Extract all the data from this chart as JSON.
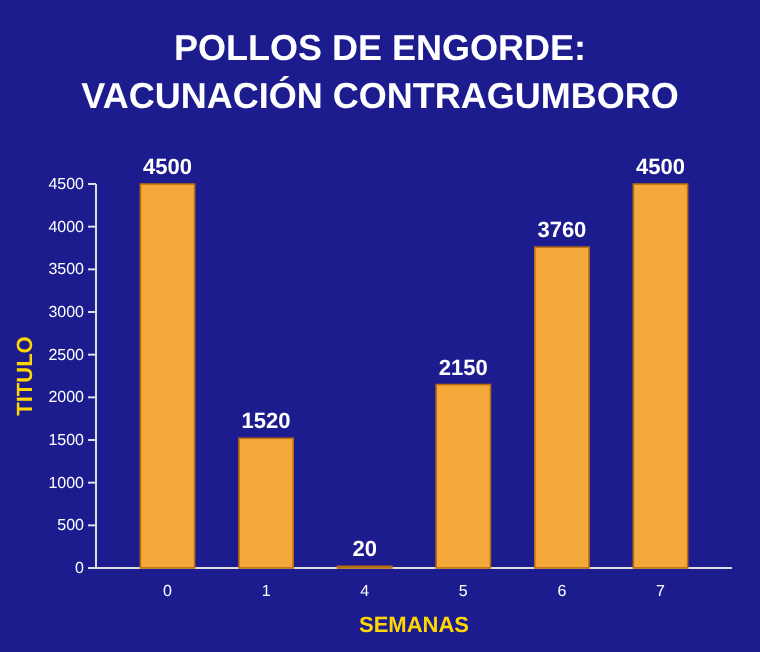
{
  "chart_data": {
    "type": "bar",
    "title": "POLLOS DE ENGORDE:\nVACUNACIÓN CONTRAGUMBORO",
    "xlabel": "SEMANAS",
    "ylabel": "TITULO",
    "categories": [
      "0",
      "1",
      "4",
      "5",
      "6",
      "7"
    ],
    "values": [
      4500,
      1520,
      20,
      2150,
      3760,
      4500
    ],
    "color": "#f6a93b",
    "ylim": [
      0,
      4500
    ],
    "yticks": [
      0,
      500,
      1000,
      1500,
      2000,
      2500,
      3000,
      3500,
      4000,
      4500
    ],
    "data_labels": true
  }
}
